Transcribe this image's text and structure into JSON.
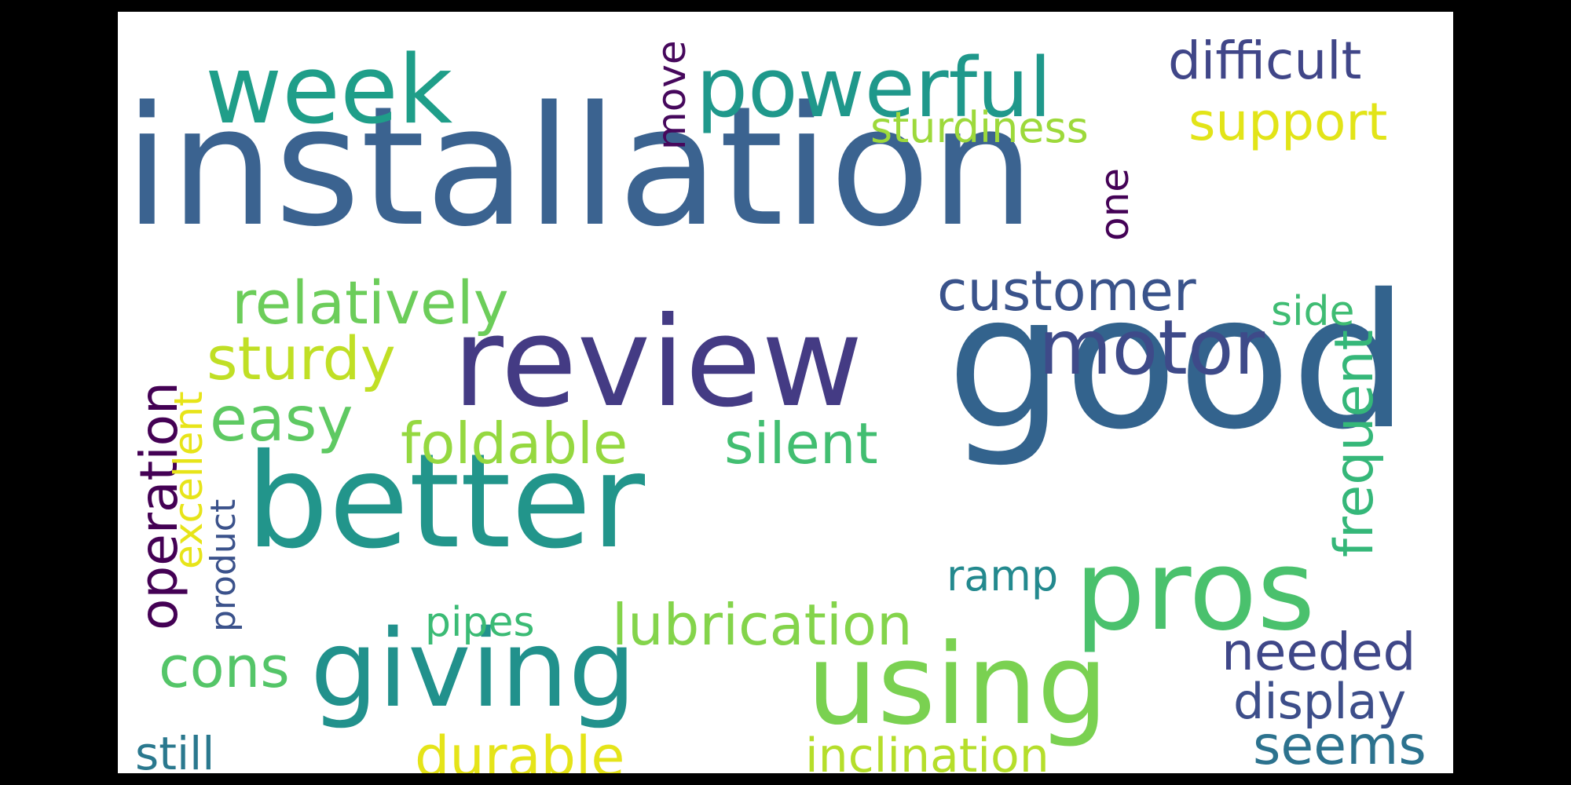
{
  "words": [
    {
      "id": "installation",
      "text": "installation",
      "color": "#3b6390"
    },
    {
      "id": "good",
      "text": "good",
      "color": "#33638d"
    },
    {
      "id": "better",
      "text": "better",
      "color": "#22958b"
    },
    {
      "id": "review",
      "text": "review",
      "color": "#443b84"
    },
    {
      "id": "giving",
      "text": "giving",
      "color": "#21918c"
    },
    {
      "id": "using",
      "text": "using",
      "color": "#7ad151"
    },
    {
      "id": "pros",
      "text": "pros",
      "color": "#4ac16d"
    },
    {
      "id": "week",
      "text": "week",
      "color": "#1f9e89"
    },
    {
      "id": "powerful",
      "text": "powerful",
      "color": "#1f988b"
    },
    {
      "id": "motor",
      "text": "motor",
      "color": "#3e4a89"
    },
    {
      "id": "customer",
      "text": "customer",
      "color": "#3a538b"
    },
    {
      "id": "difficult",
      "text": "difficult",
      "color": "#404688"
    },
    {
      "id": "support",
      "text": "support",
      "color": "#e2e418"
    },
    {
      "id": "sturdiness",
      "text": "sturdiness",
      "color": "#9dd93b"
    },
    {
      "id": "relatively",
      "text": "relatively",
      "color": "#6ccd5a"
    },
    {
      "id": "sturdy",
      "text": "sturdy",
      "color": "#c0df25"
    },
    {
      "id": "easy",
      "text": "easy",
      "color": "#5ec962"
    },
    {
      "id": "foldable",
      "text": "foldable",
      "color": "#95d840"
    },
    {
      "id": "silent",
      "text": "silent",
      "color": "#42be71"
    },
    {
      "id": "lubrication",
      "text": "lubrication",
      "color": "#84d44b"
    },
    {
      "id": "pipes",
      "text": "pipes",
      "color": "#3bbb75"
    },
    {
      "id": "cons",
      "text": "cons",
      "color": "#54c568"
    },
    {
      "id": "durable",
      "text": "durable",
      "color": "#e5e419"
    },
    {
      "id": "inclination",
      "text": "inclination",
      "color": "#b5de2b"
    },
    {
      "id": "still",
      "text": "still",
      "color": "#2a788e"
    },
    {
      "id": "ramp",
      "text": "ramp",
      "color": "#23898e"
    },
    {
      "id": "side",
      "text": "side",
      "color": "#3fbc73"
    },
    {
      "id": "needed",
      "text": "needed",
      "color": "#3f4788"
    },
    {
      "id": "display",
      "text": "display",
      "color": "#3d4e8a"
    },
    {
      "id": "seems",
      "text": "seems",
      "color": "#2c728e"
    },
    {
      "id": "move",
      "text": "move",
      "color": "#46085c"
    },
    {
      "id": "one",
      "text": "one",
      "color": "#440256"
    },
    {
      "id": "operation",
      "text": "operation",
      "color": "#440154"
    },
    {
      "id": "excellent",
      "text": "excellent",
      "color": "#e7e419"
    },
    {
      "id": "product",
      "text": "product",
      "color": "#3b528b"
    },
    {
      "id": "frequent",
      "text": "frequent",
      "color": "#35b779"
    }
  ]
}
